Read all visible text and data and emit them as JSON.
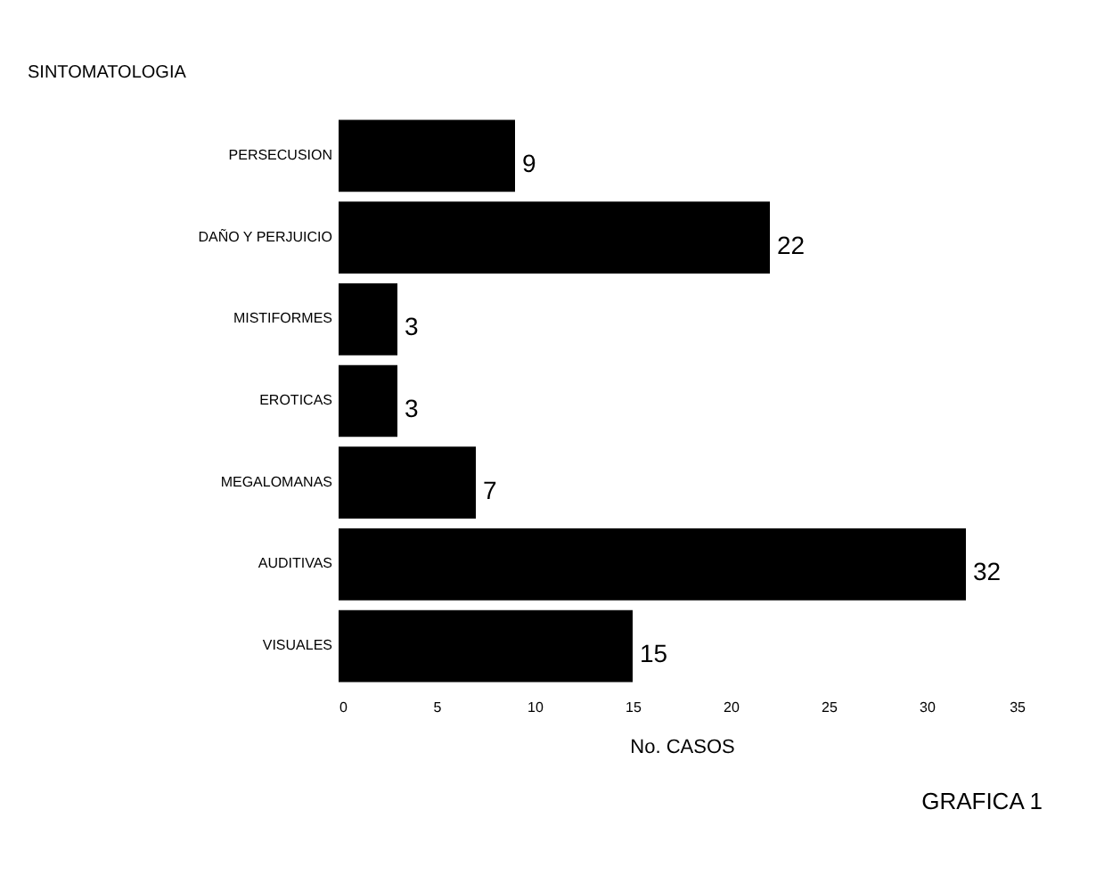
{
  "chart_data": {
    "type": "bar",
    "orientation": "horizontal",
    "ylabel": "SINTOMATOLOGIA",
    "xlabel": "No. CASOS",
    "categories": [
      "PERSECUSION",
      "DAÑO Y PERJUICIO",
      "MISTIFORMES",
      "EROTICAS",
      "MEGALOMANAS",
      "AUDITIVAS",
      "VISUALES"
    ],
    "values": [
      9,
      22,
      3,
      3,
      7,
      32,
      15
    ],
    "color": "#000000",
    "xlim": [
      0,
      35
    ],
    "xticks": [
      0,
      5,
      10,
      15,
      20,
      25,
      30,
      35
    ],
    "grid": false,
    "data_labels": true,
    "annotations": [
      "GRAFICA 1"
    ]
  }
}
